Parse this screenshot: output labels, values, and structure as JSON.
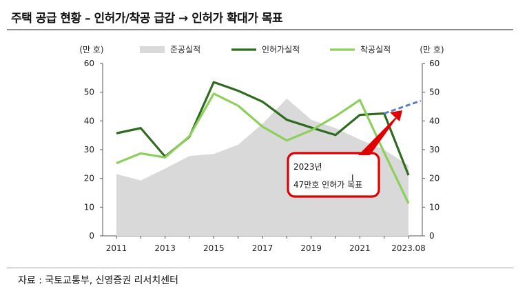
{
  "title": "주택 공급 현황 – 인허가/착공 급감 → 인허가 확대가 목표",
  "source": "자료 : 국토교통부, 신영증권 리서치센터",
  "chart_data": {
    "type": "line",
    "x": [
      2011,
      2012,
      2013,
      2014,
      2015,
      2016,
      2017,
      2018,
      2019,
      2020,
      2021,
      2022,
      "2023.08"
    ],
    "x_tick_labels": [
      "2011",
      "2013",
      "2015",
      "2017",
      "2019",
      "2021",
      "2023.08"
    ],
    "ylabel_left": "(만 호)",
    "ylabel_right": "(만 호)",
    "ylim": [
      0,
      60
    ],
    "y_ticks": [
      0,
      10,
      20,
      30,
      40,
      50,
      60
    ],
    "legend_position": "top",
    "series": [
      {
        "name": "준공실적",
        "kind": "area",
        "color": "#d9d9d9",
        "values": [
          21.5,
          19.3,
          23.4,
          27.8,
          28.5,
          31.7,
          39.0,
          47.8,
          40.4,
          37.5,
          33.5,
          30.0,
          24.5
        ]
      },
      {
        "name": "인허가실적",
        "kind": "line",
        "color": "#2e6b1f",
        "values": [
          35.7,
          37.5,
          27.6,
          34.5,
          53.5,
          50.5,
          46.7,
          40.4,
          37.7,
          35.1,
          42.1,
          42.6,
          21.1
        ]
      },
      {
        "name": "착공실적",
        "kind": "line",
        "color": "#8ccf5a",
        "values": [
          25.3,
          28.7,
          27.3,
          34.7,
          49.5,
          45.3,
          38.0,
          33.2,
          36.7,
          41.6,
          47.3,
          29.0,
          11.3
        ]
      }
    ],
    "target_line": {
      "color": "#5b7fbe",
      "from": [
        2022,
        42.6
      ],
      "to": [
        2023.5,
        47.0
      ]
    },
    "annotation": {
      "lines": [
        "2023년",
        "47만호 인허가 목표"
      ],
      "border_color": "#e00000"
    }
  }
}
